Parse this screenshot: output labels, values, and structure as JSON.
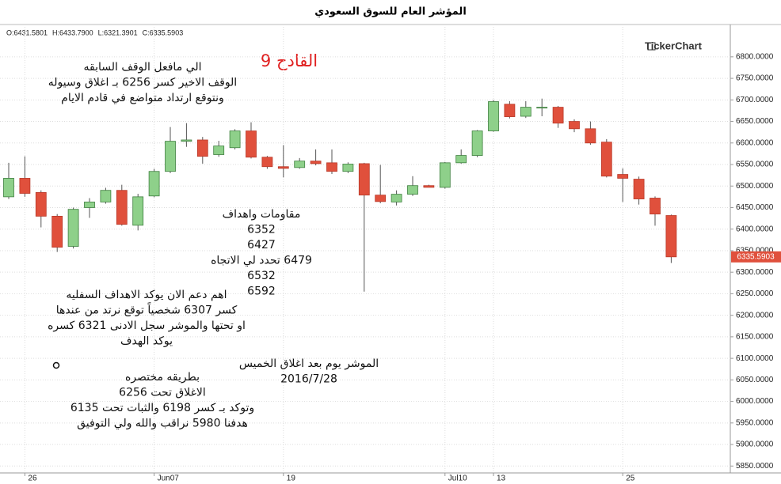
{
  "chart_data": {
    "type": "candlestick",
    "title": "المؤشر العام للسوق السعودي",
    "readout": [
      "O:6431.5801",
      "H:6433.7900",
      "L:6321.3901",
      "C:6335.5903"
    ],
    "watermark": "TickerChart",
    "categories": [
      null,
      "26",
      null,
      null,
      null,
      null,
      null,
      null,
      null,
      "Jun07",
      null,
      null,
      null,
      null,
      null,
      null,
      null,
      "19",
      null,
      null,
      null,
      null,
      null,
      null,
      null,
      null,
      null,
      "Jul10",
      null,
      null,
      "13",
      null,
      null,
      null,
      null,
      null,
      null,
      null,
      "25",
      null,
      null,
      null
    ],
    "open": [
      6475,
      6518,
      6485,
      6430,
      6360,
      6450,
      6463,
      6490,
      6409,
      6477,
      6534,
      6604,
      6607,
      6573,
      6589,
      6628,
      6567,
      6545,
      6543,
      6558,
      6554,
      6534,
      6552,
      6479,
      6463,
      6481,
      6501,
      6497,
      6554,
      6571,
      6628,
      6690,
      6662,
      6681,
      6683,
      6650,
      6633,
      6602,
      6527,
      6516,
      6472,
      6431.5801
    ],
    "high": [
      6554,
      6569,
      6490,
      6435,
      6450,
      6472,
      6496,
      6503,
      6482,
      6540,
      6637,
      6646,
      6614,
      6605,
      6632,
      6648,
      6570,
      6595,
      6565,
      6585,
      6585,
      6555,
      6554,
      6549,
      6490,
      6523,
      6503,
      6556,
      6585,
      6630,
      6700,
      6697,
      6697,
      6703,
      6686,
      6655,
      6650,
      6609,
      6541,
      6522,
      6476,
      6433.79
    ],
    "low": [
      6470,
      6475,
      6404,
      6347,
      6355,
      6426,
      6459,
      6408,
      6397,
      6474,
      6530,
      6591,
      6552,
      6568,
      6585,
      6564,
      6540,
      6520,
      6540,
      6548,
      6528,
      6530,
      6255,
      6460,
      6455,
      6477,
      6497,
      6494,
      6552,
      6567,
      6626,
      6657,
      6658,
      6662,
      6635,
      6625,
      6596,
      6520,
      6463,
      6457,
      6408,
      6321.3901
    ],
    "close": [
      6518,
      6483,
      6430,
      6358,
      6446,
      6463,
      6490,
      6411,
      6475,
      6534,
      6604,
      6607,
      6569,
      6593,
      6628,
      6567,
      6545,
      6541,
      6558,
      6552,
      6534,
      6551,
      6479,
      6464,
      6481,
      6501,
      6497,
      6554,
      6571,
      6628,
      6696,
      6661,
      6683,
      6683,
      6646,
      6633,
      6600,
      6523,
      6518,
      6470,
      6435,
      6335.5903
    ],
    "up_color": "#8ed08a",
    "down_color": "#e0503c",
    "last_price": {
      "value": 6335.5903,
      "label": "6335.5903"
    },
    "ylim": [
      5834,
      6875
    ],
    "yticks": [
      {
        "value": 5850,
        "label": "5850.0000"
      },
      {
        "value": 5900,
        "label": "5900.0000"
      },
      {
        "value": 5950,
        "label": "5950.0000"
      },
      {
        "value": 6000,
        "label": "6000.0000"
      },
      {
        "value": 6050,
        "label": "6050.0000"
      },
      {
        "value": 6100,
        "label": "6100.0000"
      },
      {
        "value": 6150,
        "label": "6150.0000"
      },
      {
        "value": 6200,
        "label": "6200.0000"
      },
      {
        "value": 6250,
        "label": "6250.0000"
      },
      {
        "value": 6300,
        "label": "6300.0000"
      },
      {
        "value": 6350,
        "label": "6350.0000"
      },
      {
        "value": 6400,
        "label": "6400.0000"
      },
      {
        "value": 6450,
        "label": "6450.0000"
      },
      {
        "value": 6500,
        "label": "6500.0000"
      },
      {
        "value": 6550,
        "label": "6550.0000"
      },
      {
        "value": 6600,
        "label": "6600.0000"
      },
      {
        "value": 6650,
        "label": "6650.0000"
      },
      {
        "value": 6700,
        "label": "6700.0000"
      },
      {
        "value": 6750,
        "label": "6750.0000"
      },
      {
        "value": 6800,
        "label": "6800.0000"
      }
    ],
    "grid": true,
    "headline": "القادح 9",
    "annotations": [
      [
        "الي مافعل الوقف السابقه",
        "الوقف الاخير كسر 6256 بـ اغلاق وسيوله",
        "ونتوقع ارتداد متواضع في قادم الايام"
      ],
      [
        "مقاومات واهداف",
        "6352",
        "6427",
        "6479 تحدد لي الاتجاه",
        "6532",
        "6592"
      ],
      [
        "اهم دعم الان يوكد الاهداف السفليه",
        "كسر 6307 شخصياً توقع نرتد من عندها",
        "او تحتها والموشر سجل الادنى 6321 كسره",
        "يوكد الهدف"
      ],
      [
        "الموشر يوم بعد اغلاق الخميس",
        "2016/7/28"
      ],
      [
        "بطريقه مختصره",
        "الاغلاق تحت 6256",
        "وتوكد بـ كسر 6198 والثبات تحت 6135",
        "هدفنا 5980 نراقب والله ولي التوفيق"
      ]
    ]
  }
}
